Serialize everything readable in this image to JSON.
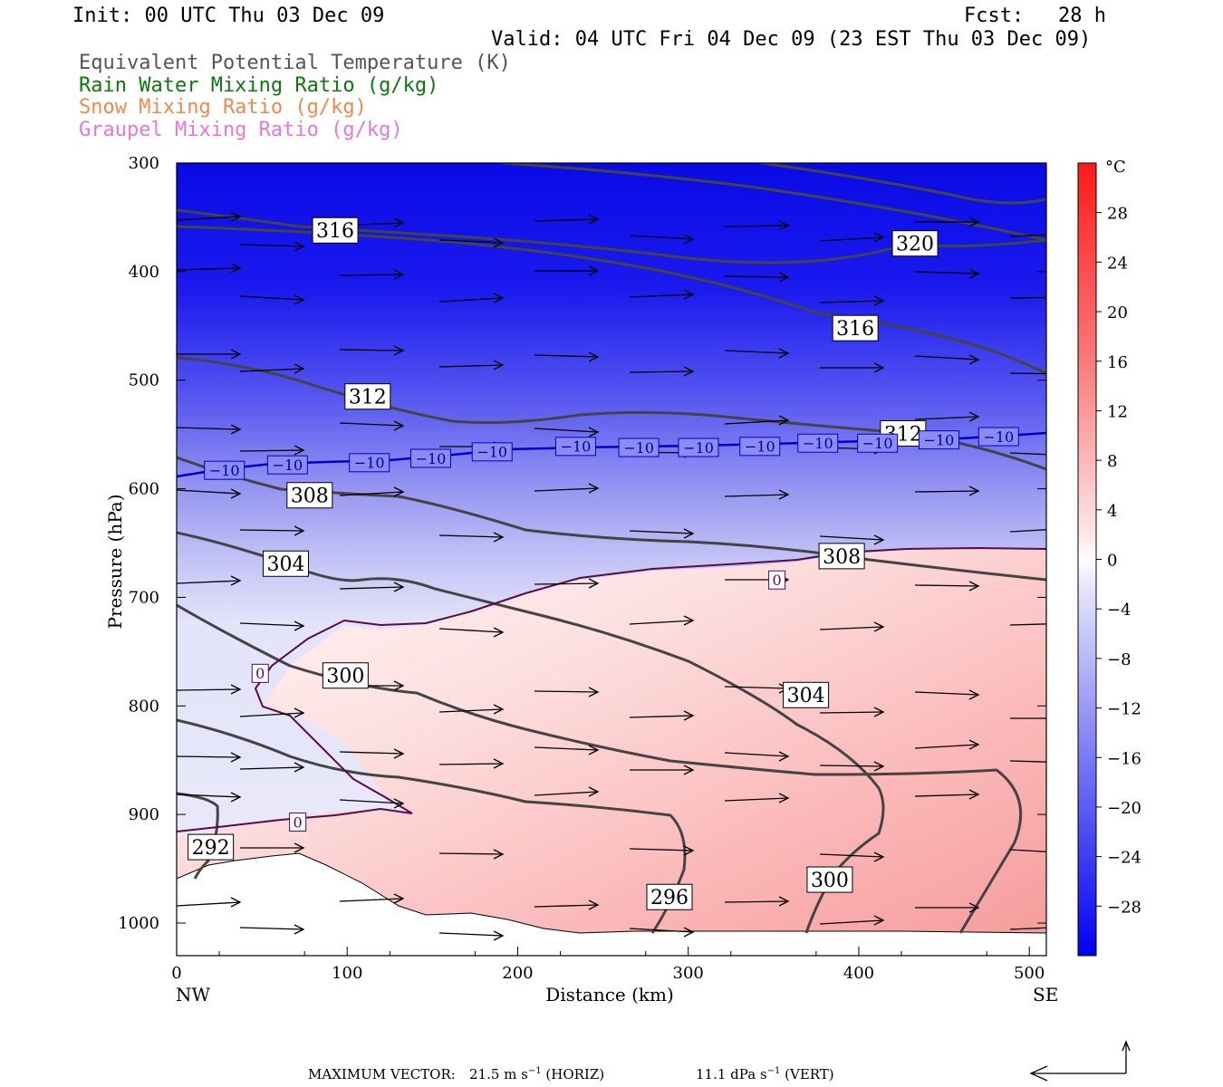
{
  "header": {
    "init": "Init: 00 UTC Thu 03 Dec 09",
    "fcst_label": "Fcst:",
    "fcst_value": "28 h",
    "valid": "Valid: 04 UTC Fri 04 Dec 09 (23 EST Thu 03 Dec 09)"
  },
  "legend": {
    "theta_e": "Equivalent Potential Temperature (K)",
    "rain": "Rain Water Mixing Ratio (g/kg)",
    "snow": "Snow Mixing Ratio (g/kg)",
    "graupel": "Graupel Mixing Ratio (g/kg)"
  },
  "colors": {
    "theta_e": "#444444",
    "rain": "#0b7a0b",
    "snow": "#f08a4b",
    "graupel": "#e477e0",
    "isotherm_neg10": "#0000cc",
    "isotherm_0": "#5a0a4a",
    "terrain": "#ffffff"
  },
  "chart_data": {
    "type": "cross-section",
    "xlabel": "Distance (km)",
    "ylabel": "Pressure (hPa)",
    "xlim": [
      0,
      510
    ],
    "ylim": [
      1030,
      300
    ],
    "x_ticks": [
      0,
      100,
      200,
      300,
      400,
      500
    ],
    "y_ticks": [
      300,
      400,
      500,
      600,
      700,
      800,
      900,
      1000
    ],
    "endpoints": {
      "left": "NW",
      "right": "SE"
    },
    "colorbar": {
      "unit": "°C",
      "range": [
        -32,
        32
      ],
      "tick_values": [
        28,
        24,
        20,
        16,
        12,
        8,
        4,
        0,
        -4,
        -8,
        -12,
        -16,
        -20,
        -24,
        -28
      ],
      "tick_labels": [
        "28",
        "24",
        "20",
        "16",
        "12",
        "8",
        "4",
        "0",
        "−4",
        "−8",
        "−12",
        "−16",
        "−20",
        "−24",
        "−28"
      ]
    },
    "theta_e_labels": [
      {
        "text": "316",
        "x": 93,
        "p": 362
      },
      {
        "text": "320",
        "x": 433,
        "p": 374
      },
      {
        "text": "316",
        "x": 398,
        "p": 452
      },
      {
        "text": "312",
        "x": 112,
        "p": 515
      },
      {
        "text": "312",
        "x": 426,
        "p": 549
      },
      {
        "text": "308",
        "x": 78,
        "p": 606
      },
      {
        "text": "304",
        "x": 64,
        "p": 669
      },
      {
        "text": "308",
        "x": 390,
        "p": 662
      },
      {
        "text": "300",
        "x": 99,
        "p": 772
      },
      {
        "text": "304",
        "x": 369,
        "p": 790
      },
      {
        "text": "292",
        "x": 20,
        "p": 930
      },
      {
        "text": "296",
        "x": 289,
        "p": 976
      },
      {
        "text": "300",
        "x": 383,
        "p": 960
      }
    ],
    "isotherm_neg10_labels": [
      {
        "text": "−10",
        "x": 28,
        "p": 583
      },
      {
        "text": "−10",
        "x": 65,
        "p": 578
      },
      {
        "text": "−10",
        "x": 113,
        "p": 576
      },
      {
        "text": "−10",
        "x": 149,
        "p": 572
      },
      {
        "text": "−10",
        "x": 185,
        "p": 566
      },
      {
        "text": "−10",
        "x": 234,
        "p": 561
      },
      {
        "text": "−10",
        "x": 271,
        "p": 562
      },
      {
        "text": "−10",
        "x": 306,
        "p": 562
      },
      {
        "text": "−10",
        "x": 342,
        "p": 561
      },
      {
        "text": "−10",
        "x": 376,
        "p": 558
      },
      {
        "text": "−10",
        "x": 411,
        "p": 558
      },
      {
        "text": "−10",
        "x": 447,
        "p": 555
      },
      {
        "text": "−10",
        "x": 482,
        "p": 552
      }
    ],
    "isotherm_0_labels": [
      {
        "text": "0",
        "x": 352,
        "p": 684
      },
      {
        "text": "0",
        "x": 49,
        "p": 770
      },
      {
        "text": "0",
        "x": 71,
        "p": 907
      }
    ]
  },
  "footer": {
    "max_vector_label": "MAXIMUM VECTOR:",
    "horiz_value": "21.5 m s",
    "horiz_exp": "−1",
    "horiz_tag": "(HORIZ)",
    "vert_value": "11.1 dPa s",
    "vert_exp": "−1",
    "vert_tag": "(VERT)"
  }
}
